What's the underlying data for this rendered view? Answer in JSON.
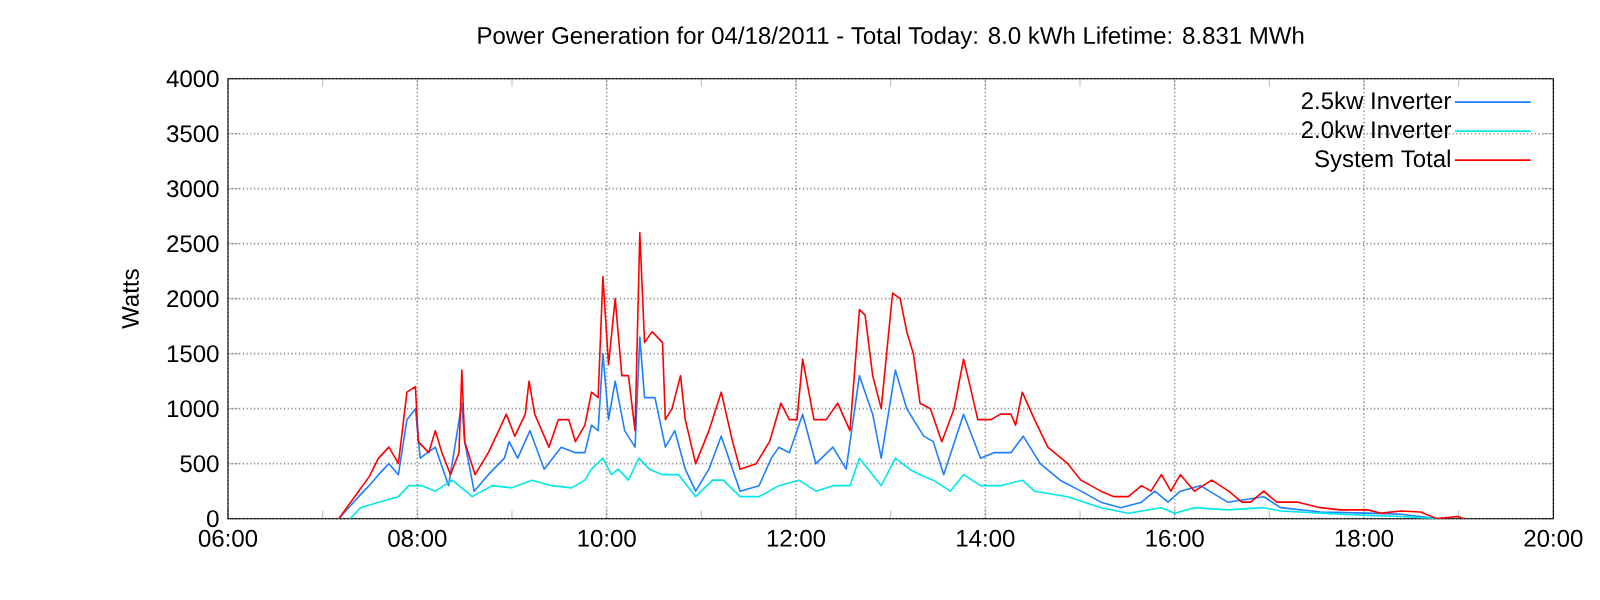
{
  "chart_data": {
    "type": "line",
    "title": "Power Generation for 04/18/2011 - Total Today: 8.0 kWh   Lifetime: 8.831 MWh",
    "ylabel": "Watts",
    "xlim": [
      6,
      20
    ],
    "ylim": [
      0,
      4000
    ],
    "xticks": [
      {
        "value": 6,
        "label": "06:00"
      },
      {
        "value": 7,
        "label": null
      },
      {
        "value": 8,
        "label": "08:00"
      },
      {
        "value": 9,
        "label": null
      },
      {
        "value": 10,
        "label": "10:00"
      },
      {
        "value": 11,
        "label": null
      },
      {
        "value": 12,
        "label": "12:00"
      },
      {
        "value": 13,
        "label": null
      },
      {
        "value": 14,
        "label": "14:00"
      },
      {
        "value": 15,
        "label": null
      },
      {
        "value": 16,
        "label": "16:00"
      },
      {
        "value": 17,
        "label": null
      },
      {
        "value": 18,
        "label": "18:00"
      },
      {
        "value": 19,
        "label": null
      },
      {
        "value": 20,
        "label": "20:00"
      }
    ],
    "yticks": [
      0,
      500,
      1000,
      1500,
      2000,
      2500,
      3000,
      3500,
      4000
    ],
    "grid": true,
    "legend": "top right",
    "marker": "none",
    "line_style": "solid",
    "series": [
      {
        "name": "2.5kw Inverter",
        "color": "#1e7fff",
        "x": [
          7.17,
          7.38,
          7.49,
          7.59,
          7.7,
          7.8,
          7.89,
          7.98,
          8.03,
          8.19,
          8.33,
          8.47,
          8.5,
          8.6,
          8.75,
          8.92,
          8.97,
          9.06,
          9.19,
          9.34,
          9.52,
          9.67,
          9.77,
          9.84,
          9.91,
          9.96,
          10.02,
          10.09,
          10.19,
          10.3,
          10.35,
          10.4,
          10.51,
          10.62,
          10.72,
          10.83,
          10.94,
          11.08,
          11.21,
          11.33,
          11.41,
          11.61,
          11.74,
          11.82,
          11.93,
          12.07,
          12.21,
          12.39,
          12.53,
          12.67,
          12.81,
          12.9,
          13.05,
          13.17,
          13.24,
          13.35,
          13.45,
          13.56,
          13.77,
          13.95,
          14.09,
          14.27,
          14.4,
          14.58,
          14.79,
          15.01,
          15.22,
          15.43,
          15.65,
          15.79,
          15.93,
          16.06,
          16.27,
          16.56,
          16.94,
          17.12,
          17.54,
          18.04,
          18.39,
          18.77
        ],
        "values": [
          0,
          200,
          300,
          400,
          500,
          400,
          900,
          1000,
          550,
          650,
          300,
          1050,
          700,
          250,
          400,
          550,
          700,
          550,
          800,
          450,
          650,
          600,
          600,
          850,
          800,
          1500,
          900,
          1250,
          800,
          650,
          1650,
          1100,
          1100,
          650,
          800,
          450,
          250,
          450,
          750,
          450,
          250,
          300,
          550,
          650,
          600,
          950,
          500,
          650,
          450,
          1300,
          950,
          550,
          1350,
          1000,
          900,
          750,
          700,
          400,
          950,
          550,
          600,
          600,
          750,
          500,
          350,
          250,
          150,
          100,
          150,
          250,
          150,
          250,
          300,
          150,
          200,
          100,
          60,
          50,
          40,
          0
        ]
      },
      {
        "name": "2.0kw Inverter",
        "color": "#00e8e8",
        "x": [
          7.29,
          7.4,
          7.59,
          7.8,
          7.91,
          8.05,
          8.19,
          8.37,
          8.58,
          8.79,
          9.0,
          9.21,
          9.42,
          9.63,
          9.77,
          9.84,
          9.96,
          10.05,
          10.12,
          10.23,
          10.34,
          10.45,
          10.59,
          10.76,
          10.94,
          11.12,
          11.23,
          11.41,
          11.61,
          11.82,
          12.03,
          12.21,
          12.39,
          12.57,
          12.67,
          12.9,
          13.05,
          13.2,
          13.31,
          13.45,
          13.63,
          13.77,
          13.95,
          14.16,
          14.39,
          14.52,
          14.87,
          15.22,
          15.51,
          15.86,
          16.0,
          16.21,
          16.56,
          16.94,
          17.12,
          17.54,
          18.04,
          18.39,
          18.77
        ],
        "values": [
          0,
          100,
          150,
          200,
          300,
          300,
          250,
          350,
          200,
          300,
          280,
          350,
          300,
          280,
          350,
          450,
          550,
          400,
          450,
          350,
          550,
          450,
          400,
          400,
          200,
          350,
          350,
          200,
          200,
          300,
          350,
          250,
          300,
          300,
          550,
          300,
          550,
          450,
          400,
          350,
          250,
          400,
          300,
          300,
          350,
          250,
          200,
          100,
          50,
          100,
          50,
          100,
          80,
          100,
          70,
          50,
          30,
          20,
          0
        ]
      },
      {
        "name": "System Total",
        "color": "#ff0000",
        "x": [
          7.17,
          7.38,
          7.49,
          7.59,
          7.7,
          7.8,
          7.89,
          7.98,
          8.01,
          8.12,
          8.19,
          8.26,
          8.35,
          8.44,
          8.47,
          8.5,
          8.61,
          8.75,
          8.86,
          8.94,
          9.03,
          9.14,
          9.18,
          9.24,
          9.39,
          9.49,
          9.6,
          9.67,
          9.77,
          9.84,
          9.91,
          9.96,
          10.02,
          10.09,
          10.16,
          10.23,
          10.3,
          10.35,
          10.4,
          10.48,
          10.59,
          10.62,
          10.69,
          10.78,
          10.83,
          10.94,
          11.08,
          11.21,
          11.33,
          11.41,
          11.58,
          11.72,
          11.84,
          11.93,
          12.01,
          12.07,
          12.19,
          12.32,
          12.44,
          12.57,
          12.67,
          12.73,
          12.81,
          12.9,
          13.02,
          13.1,
          13.17,
          13.24,
          13.31,
          13.42,
          13.54,
          13.67,
          13.77,
          13.84,
          13.92,
          14.06,
          14.16,
          14.27,
          14.32,
          14.39,
          14.52,
          14.66,
          14.87,
          15.01,
          15.22,
          15.36,
          15.51,
          15.65,
          15.75,
          15.86,
          15.96,
          16.06,
          16.21,
          16.39,
          16.57,
          16.71,
          16.8,
          16.94,
          17.08,
          17.3,
          17.54,
          17.75,
          18.04,
          18.18,
          18.39,
          18.6,
          18.77,
          18.99,
          19.06
        ],
        "values": [
          0,
          250,
          380,
          550,
          650,
          500,
          1150,
          1200,
          700,
          600,
          800,
          600,
          400,
          600,
          1350,
          700,
          400,
          600,
          800,
          950,
          750,
          950,
          1250,
          950,
          650,
          900,
          900,
          700,
          850,
          1150,
          1100,
          2200,
          1400,
          2000,
          1300,
          1300,
          800,
          2600,
          1600,
          1700,
          1600,
          900,
          1000,
          1300,
          900,
          500,
          800,
          1150,
          700,
          450,
          500,
          700,
          1050,
          900,
          900,
          1450,
          900,
          900,
          1050,
          800,
          1900,
          1850,
          1300,
          1000,
          2050,
          2000,
          1700,
          1500,
          1050,
          1000,
          700,
          1000,
          1450,
          1200,
          900,
          900,
          950,
          950,
          850,
          1150,
          900,
          650,
          500,
          350,
          250,
          200,
          200,
          300,
          250,
          400,
          250,
          400,
          250,
          350,
          250,
          150,
          150,
          250,
          150,
          150,
          100,
          80,
          80,
          50,
          70,
          60,
          0,
          20,
          0
        ]
      }
    ]
  }
}
